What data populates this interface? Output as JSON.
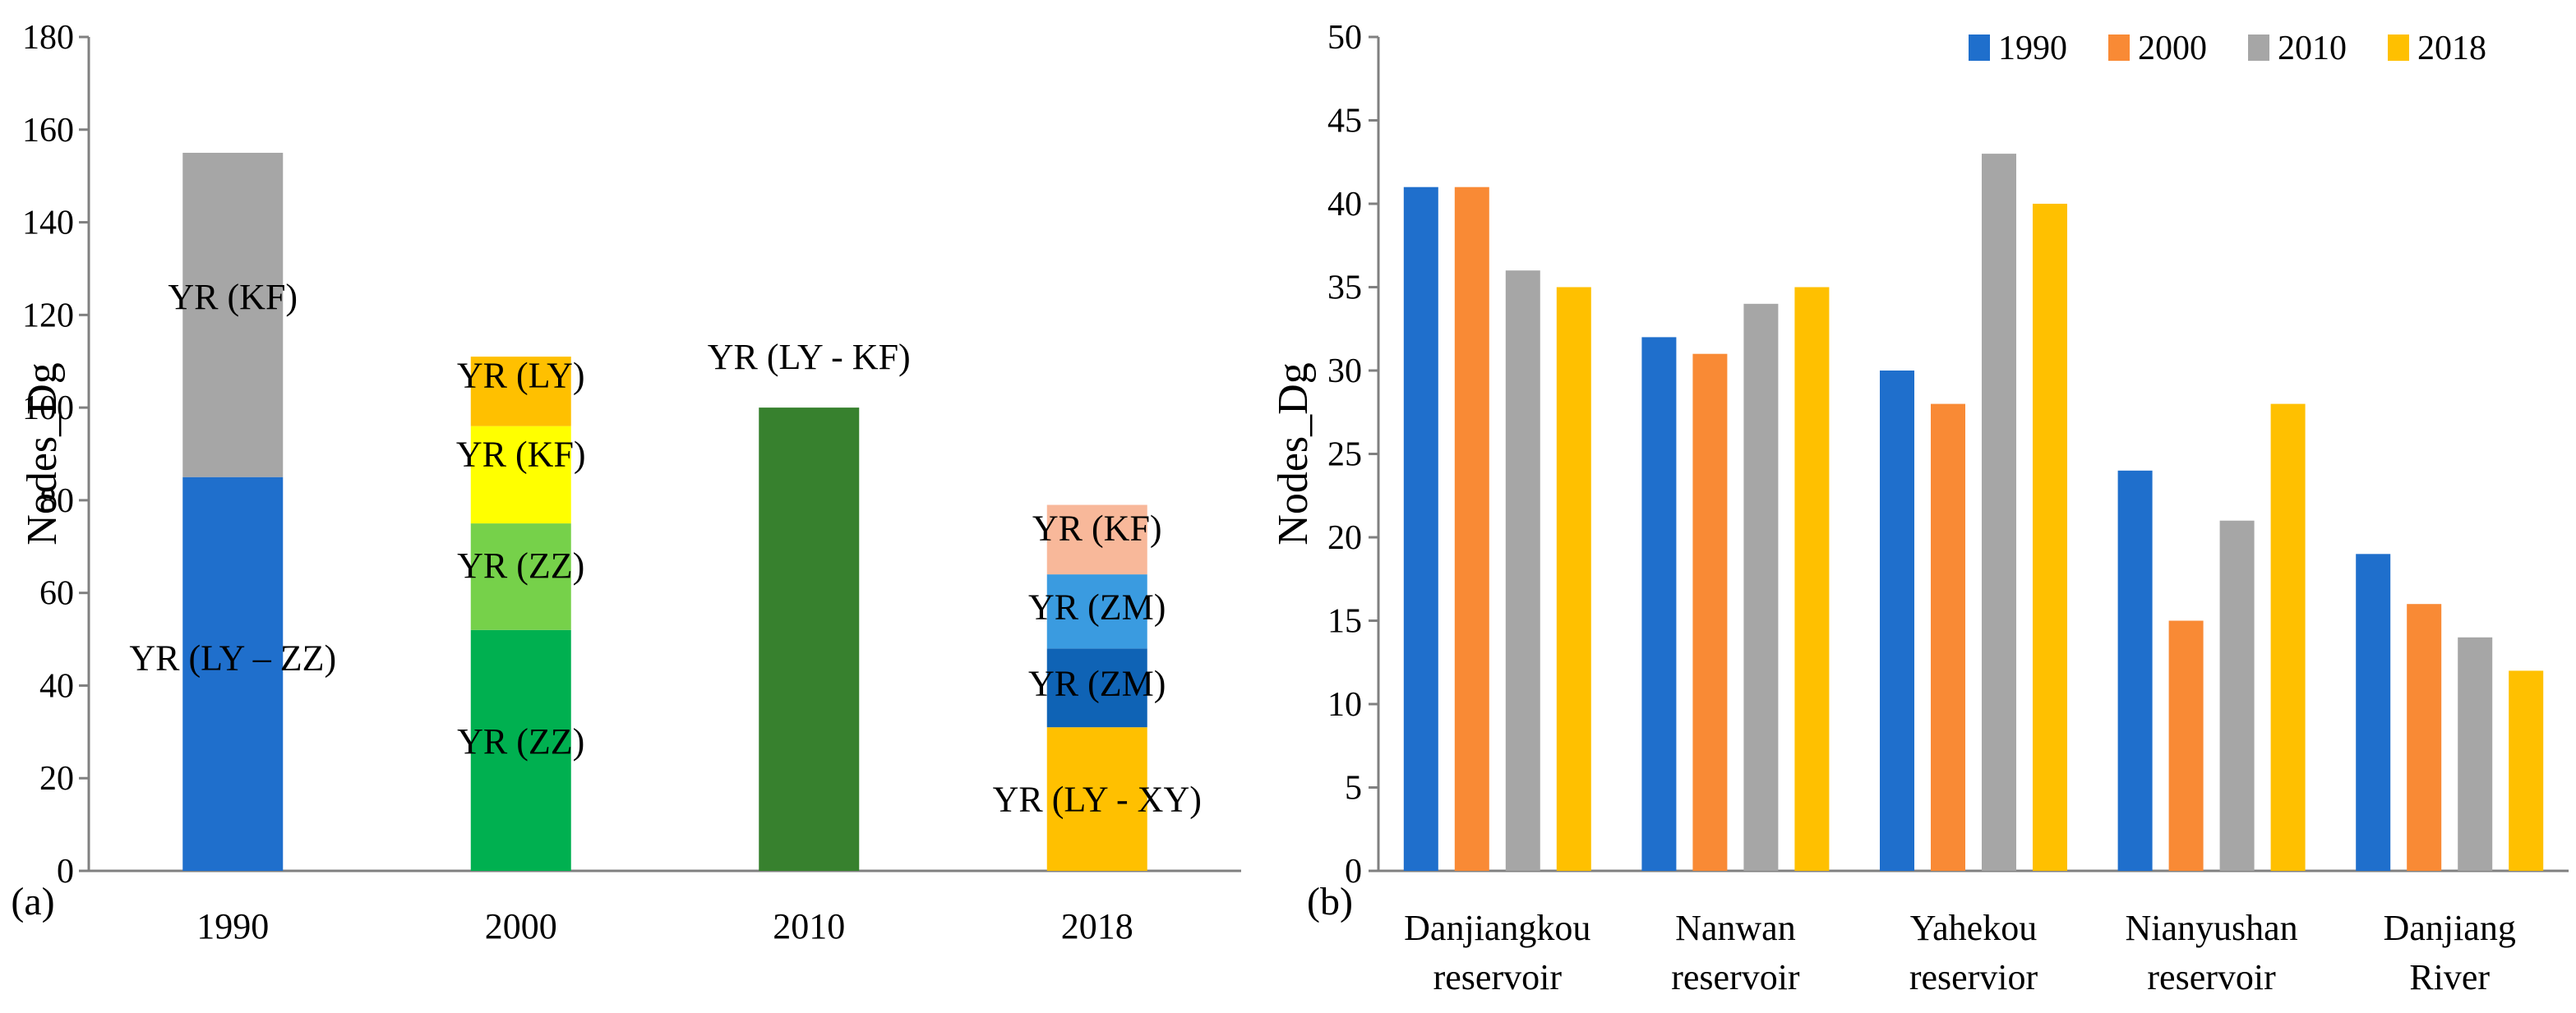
{
  "colors": {
    "axis": "#808080",
    "series": [
      "#1f6fcc",
      "#f98a35",
      "#a6a6a6",
      "#ffc000"
    ]
  },
  "chart_data": [
    {
      "id": "a",
      "panel_label": "(a)",
      "type": "bar",
      "stacked": true,
      "title": "",
      "xlabel": "",
      "ylabel": "Nodes_Dg",
      "ylim": [
        0,
        180
      ],
      "yticks": [
        "0",
        "20",
        "40",
        "60",
        "80",
        "100",
        "120",
        "140",
        "160",
        "180"
      ],
      "categories": [
        "1990",
        "2000",
        "2010",
        "2018"
      ],
      "stacks": [
        {
          "category": "1990",
          "segments": [
            {
              "label": "YR (LY – ZZ)",
              "from": 0,
              "to": 85,
              "color": "#1f6fcc"
            },
            {
              "label": "YR (KF)",
              "from": 85,
              "to": 155,
              "color": "#a6a6a6"
            }
          ]
        },
        {
          "category": "2000",
          "segments": [
            {
              "label": "YR (ZZ)",
              "from": 0,
              "to": 52,
              "color": "#00b050"
            },
            {
              "label": "YR (ZZ)",
              "from": 52,
              "to": 75,
              "color": "#76d14a"
            },
            {
              "label": "YR (KF)",
              "from": 75,
              "to": 96,
              "color": "#ffff00"
            },
            {
              "label": "YR (LY)",
              "from": 96,
              "to": 111,
              "color": "#ffc000"
            }
          ]
        },
        {
          "category": "2010",
          "segments": [
            {
              "label": "YR (LY - KF)",
              "from": 0,
              "to": 100,
              "color": "#37812e"
            }
          ]
        },
        {
          "category": "2018",
          "segments": [
            {
              "label": "YR (LY - XY)",
              "from": 0,
              "to": 31,
              "color": "#ffc000"
            },
            {
              "label": "YR (ZM)",
              "from": 31,
              "to": 48,
              "color": "#0f63b5"
            },
            {
              "label": "YR (ZM)",
              "from": 48,
              "to": 64,
              "color": "#3a9be0"
            },
            {
              "label": "YR (KF)",
              "from": 64,
              "to": 79,
              "color": "#f8b89a"
            }
          ]
        }
      ]
    },
    {
      "id": "b",
      "panel_label": "(b)",
      "type": "bar",
      "title": "",
      "xlabel": "",
      "ylabel": "Nodes_Dg",
      "ylim": [
        0,
        50
      ],
      "yticks": [
        "0",
        "5",
        "10",
        "15",
        "20",
        "25",
        "30",
        "35",
        "40",
        "45",
        "50"
      ],
      "categories": [
        [
          "Danjiangkou",
          "reservoir"
        ],
        [
          "Nanwan",
          "reservoir"
        ],
        [
          "Yahekou",
          "reservior"
        ],
        [
          "Nianyushan",
          "reservoir"
        ],
        [
          "Danjiang",
          "River"
        ]
      ],
      "legend_position": "top-right",
      "series": [
        {
          "name": "1990",
          "color": "#1f6fcc",
          "values": [
            41,
            32,
            30,
            24,
            19
          ]
        },
        {
          "name": "2000",
          "color": "#f98a35",
          "values": [
            41,
            31,
            28,
            15,
            16
          ]
        },
        {
          "name": "2010",
          "color": "#a6a6a6",
          "values": [
            36,
            34,
            43,
            21,
            14
          ]
        },
        {
          "name": "2018",
          "color": "#ffc000",
          "values": [
            35,
            35,
            40,
            28,
            12
          ]
        }
      ]
    }
  ]
}
